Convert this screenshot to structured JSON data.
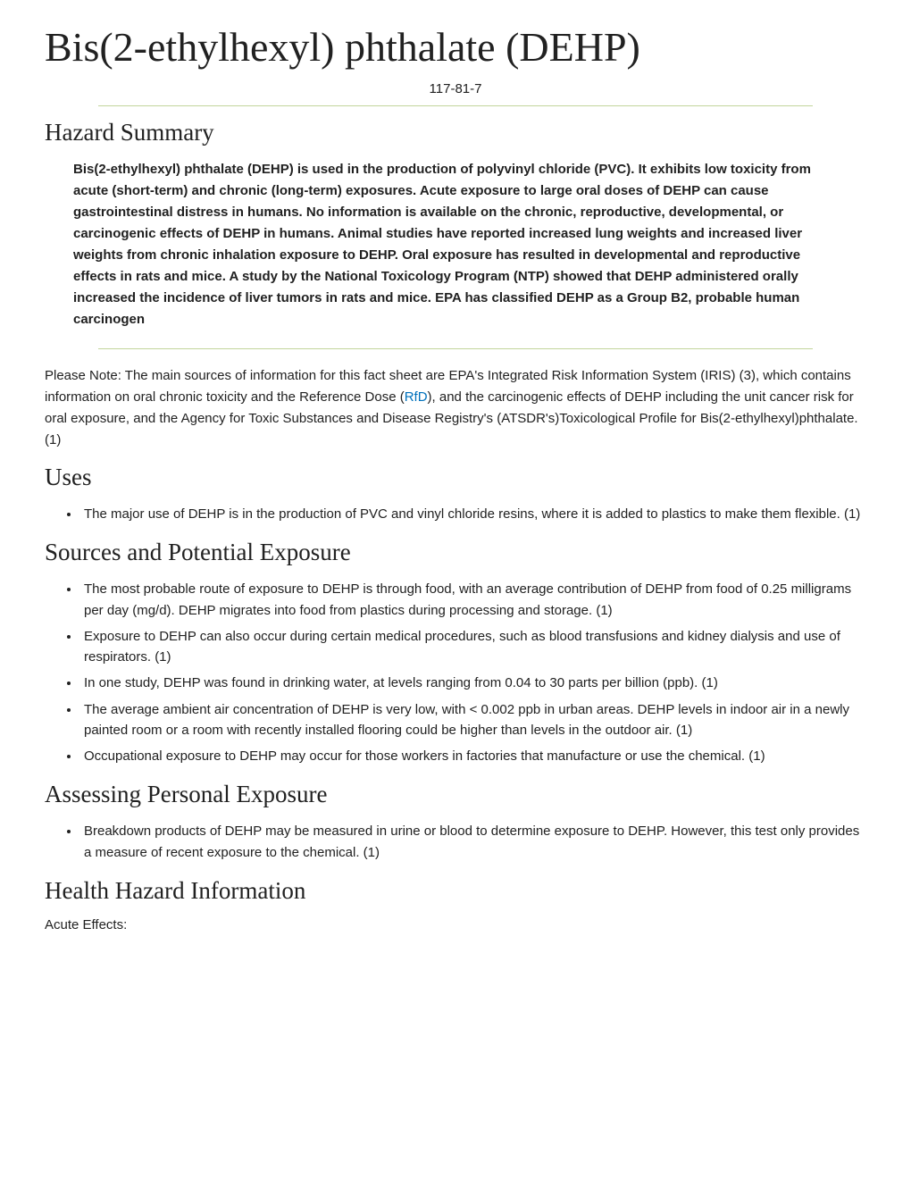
{
  "title": "Bis(2-ethylhexyl) phthalate (DEHP)",
  "cas": "117-81-7",
  "sections": {
    "hazard_summary": {
      "heading": "Hazard Summary",
      "body": "Bis(2-ethylhexyl) phthalate (DEHP) is used in the production of polyvinyl chloride (PVC).  It exhibits low toxicity from acute (short-term) and chronic (long-term) exposures.  Acute exposure to large oral doses of DEHP can cause gastrointestinal distress in humans.  No information is available on the chronic, reproductive, developmental, or carcinogenic effects of DEHP in humans.  Animal studies have reported increased lung weights and increased liver weights from chronic inhalation exposure to DEHP.  Oral exposure has resulted in developmental and reproductive effects in rats and mice.  A study by the National Toxicology Program (NTP) showed that DEHP administered orally increased the incidence of liver tumors in rats and mice.  EPA has classified DEHP as a Group B2, probable human carcinogen"
    },
    "note": {
      "pre": "Please Note: The main sources of information for this fact sheet are EPA's Integrated Risk Information System (IRIS) (3), which contains information on oral chronic toxicity and the Reference Dose (",
      "link_text": "RfD",
      "post": "), and the carcinogenic effects of DEHP including the unit cancer risk for oral exposure, and the Agency for Toxic Substances and Disease Registry's (ATSDR's)Toxicological Profile for Bis(2-ethylhexyl)phthalate. (1)"
    },
    "uses": {
      "heading": "Uses",
      "items": [
        "The major use of DEHP is in the production of PVC and vinyl chloride resins, where it is added to plastics to make them flexible. (1)"
      ]
    },
    "sources": {
      "heading": "Sources and Potential Exposure",
      "items": [
        "The most probable route of exposure to DEHP is through food, with an average contribution of DEHP from food of 0.25 milligrams per day (mg/d).  DEHP migrates into food from plastics during processing and storage. (1)",
        "Exposure to DEHP can also occur during certain medical procedures, such as blood transfusions and kidney dialysis and use of respirators. (1)",
        "In one study, DEHP was found in drinking water, at levels ranging from 0.04 to 30 parts per billion (ppb). (1)",
        "The average ambient air concentration of DEHP is very low, with < 0.002 ppb in urban areas. DEHP levels in indoor air in a newly painted room or a room with recently installed flooring could be higher than levels in the outdoor air. (1)",
        "Occupational exposure to DEHP may occur for those workers in factories that manufacture or use the chemical. (1)"
      ]
    },
    "assessing": {
      "heading": "Assessing Personal Exposure",
      "items": [
        "Breakdown products of DEHP may be measured in urine or blood to determine exposure to DEHP. However, this test only provides a measure of recent exposure to the chemical. (1)"
      ]
    },
    "health": {
      "heading": "Health Hazard Information",
      "sublabel": "Acute Effects:"
    }
  }
}
